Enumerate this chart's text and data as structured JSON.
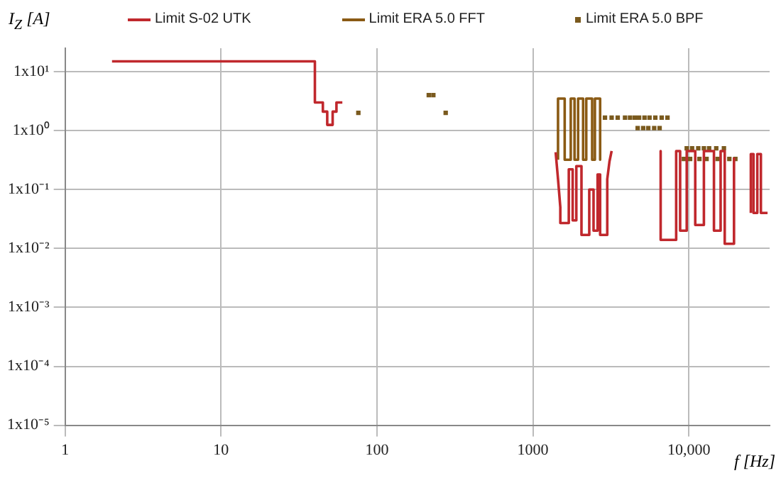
{
  "chart_data": {
    "type": "line",
    "xlabel": "f [Hz]",
    "ylabel": "I$_{Z}$ [A]",
    "log": "xy",
    "grid": true,
    "legend": "top",
    "xlim": [
      1,
      33000
    ],
    "ylim": [
      1e-05,
      25
    ],
    "xticks": [
      1,
      10,
      100,
      1000,
      {
        "value": 10000,
        "label": "10,000"
      }
    ],
    "yticks": [
      {
        "value": 1e-05,
        "label": "1x10⁻⁵"
      },
      {
        "value": 0.0001,
        "label": "1x10⁻⁴"
      },
      {
        "value": 0.001,
        "label": "1x10⁻³"
      },
      {
        "value": 0.01,
        "label": "1x10⁻²"
      },
      {
        "value": 0.1,
        "label": "1x10⁻¹"
      },
      {
        "value": 1,
        "label": "1x10⁰"
      },
      {
        "value": 10,
        "label": "1x10¹"
      }
    ],
    "series": [
      {
        "name": "Limit S-02 UTK",
        "type": "line",
        "marker": "none",
        "color": "#c0282d",
        "x": [
          2,
          40,
          40,
          45,
          45,
          48,
          48,
          52,
          52,
          55,
          55,
          60,
          100,
          1400,
          1450,
          1500,
          1500,
          1700,
          1700,
          1800,
          1800,
          1900,
          1900,
          2050,
          2050,
          2300,
          2300,
          2450,
          2450,
          2600,
          2600,
          2700,
          2700,
          3000,
          3000,
          3100,
          3200,
          5000,
          6600,
          6600,
          8300,
          8300,
          8800,
          8800,
          9700,
          9700,
          11000,
          11000,
          12500,
          12500,
          14500,
          14500,
          16000,
          16000,
          17000,
          17000,
          19500,
          19500,
          22000,
          25000,
          25000,
          26000,
          26000,
          27500,
          27500,
          29000,
          29000,
          32000
        ],
        "values": [
          15,
          15,
          3,
          3,
          2.1,
          2.1,
          1.25,
          1.25,
          2.1,
          2.1,
          3,
          3,
          null,
          0.43,
          0.15,
          0.05,
          0.027,
          0.027,
          0.22,
          0.22,
          0.03,
          0.03,
          0.25,
          0.25,
          0.017,
          0.017,
          0.1,
          0.1,
          0.02,
          0.02,
          0.18,
          0.18,
          0.017,
          0.017,
          0.15,
          0.3,
          0.45,
          null,
          0.45,
          0.014,
          0.014,
          0.45,
          0.45,
          0.02,
          0.02,
          0.45,
          0.45,
          0.025,
          0.025,
          0.45,
          0.45,
          0.02,
          0.02,
          0.45,
          0.45,
          0.012,
          0.012,
          0.35,
          null,
          0.04,
          0.4,
          0.4,
          0.04,
          0.04,
          0.4,
          0.4,
          0.04,
          0.04
        ]
      },
      {
        "name": "Limit ERA 5.0 FFT",
        "type": "line",
        "marker": "none",
        "color": "#8a5a14",
        "x": [
          1450,
          1450,
          1600,
          1600,
          1750,
          1750,
          1850,
          1850,
          1950,
          1950,
          2100,
          2100,
          2200,
          2200,
          2400,
          2400,
          2500,
          2500,
          2700,
          2700
        ],
        "values": [
          0.32,
          3.5,
          3.5,
          0.32,
          0.32,
          3.5,
          3.5,
          0.32,
          0.32,
          3.5,
          3.5,
          0.32,
          0.32,
          3.5,
          3.5,
          0.32,
          0.32,
          3.5,
          3.5,
          0.32
        ]
      },
      {
        "name": "Limit ERA 5.0 BPF",
        "type": "scatter",
        "marker": "square",
        "color": "#7a5a1e",
        "x": [
          76,
          215,
          230,
          276,
          2900,
          3200,
          3500,
          3900,
          4200,
          4500,
          4800,
          5200,
          5600,
          6100,
          6700,
          7300,
          4700,
          5100,
          5500,
          6000,
          6500,
          9700,
          10500,
          11500,
          12500,
          13500,
          15000,
          16800,
          9300,
          10200,
          11700,
          13000,
          15300,
          18200,
          19900
        ],
        "values": [
          2,
          4,
          4,
          2,
          1.66,
          1.66,
          1.66,
          1.66,
          1.66,
          1.66,
          1.66,
          1.66,
          1.66,
          1.66,
          1.66,
          1.66,
          1.1,
          1.1,
          1.1,
          1.1,
          1.1,
          0.5,
          0.5,
          0.5,
          0.5,
          0.5,
          0.5,
          0.5,
          0.33,
          0.33,
          0.33,
          0.33,
          0.33,
          0.33,
          0.33
        ]
      }
    ]
  }
}
